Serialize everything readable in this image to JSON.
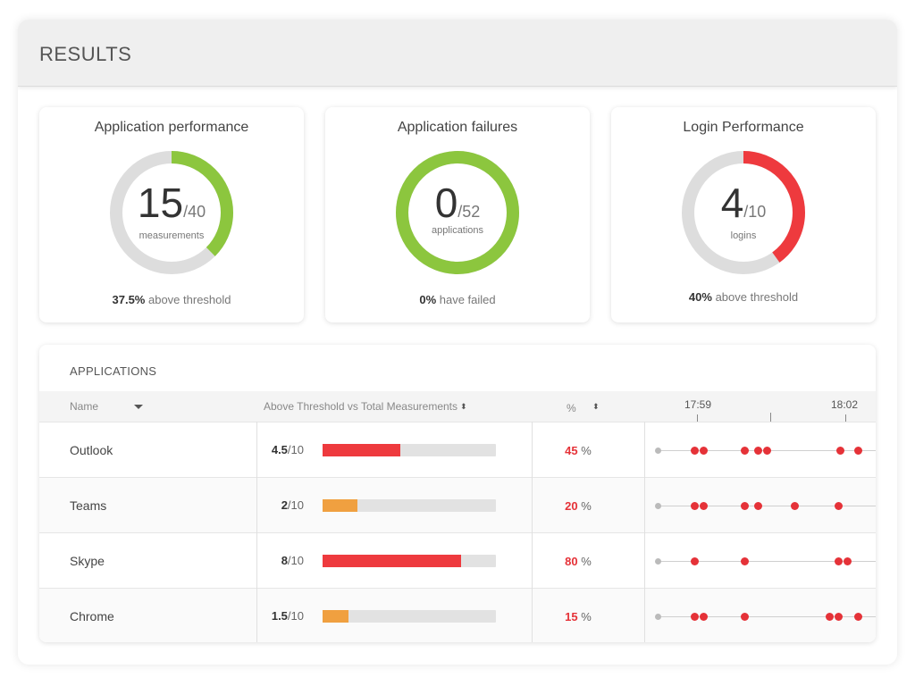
{
  "header": {
    "title": "RESULTS"
  },
  "cards": [
    {
      "title": "Application performance",
      "value": "15",
      "total": "/40",
      "unit": "measurements",
      "fraction": 0.375,
      "color": "#8cc63e",
      "foot_strong": "37.5%",
      "foot_rest": " above threshold"
    },
    {
      "title": "Application failures",
      "value": "0",
      "total": "/52",
      "unit": "applications",
      "fraction": 1.0,
      "color": "#8cc63e",
      "foot_strong": "0%",
      "foot_rest": " have failed"
    },
    {
      "title": "Login Performance",
      "value": "4",
      "total": "/10",
      "unit": "logins",
      "fraction": 0.4,
      "color": "#ee3a3e",
      "foot_strong": "40%",
      "foot_rest": " above threshold"
    }
  ],
  "applications": {
    "title": "APPLICATIONS",
    "columns": {
      "name": "Name",
      "threshold": "Above Threshold vs Total Measurements",
      "percent": "%",
      "sort_glyph": "⬍"
    },
    "times": [
      "17:59",
      "18:02"
    ],
    "rows": [
      {
        "name": "Outlook",
        "score": "4.5",
        "of": "/10",
        "fraction": 0.45,
        "bar_color": "#ee3a3e",
        "pct": "45",
        "pct_unit": " %",
        "events": [
          0.17,
          0.21,
          0.4,
          0.46,
          0.5,
          0.84,
          0.92
        ]
      },
      {
        "name": "Teams",
        "score": "2",
        "of": "/10",
        "fraction": 0.2,
        "bar_color": "#f0a040",
        "pct": "20",
        "pct_unit": " %",
        "events": [
          0.17,
          0.21,
          0.4,
          0.46,
          0.63,
          0.83
        ]
      },
      {
        "name": "Skype",
        "score": "8",
        "of": "/10",
        "fraction": 0.8,
        "bar_color": "#ee3a3e",
        "pct": "80",
        "pct_unit": " %",
        "events": [
          0.17,
          0.4,
          0.83,
          0.87
        ]
      },
      {
        "name": "Chrome",
        "score": "1.5",
        "of": "/10",
        "fraction": 0.15,
        "bar_color": "#f0a040",
        "pct": "15",
        "pct_unit": " %",
        "events": [
          0.17,
          0.21,
          0.4,
          0.79,
          0.83,
          0.92
        ]
      }
    ]
  }
}
